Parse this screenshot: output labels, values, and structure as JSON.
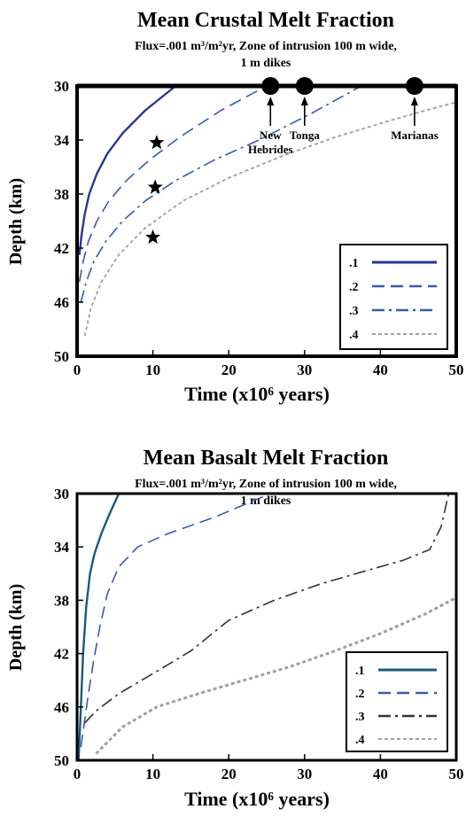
{
  "colors": {
    "s1_top": "#2b3590",
    "s1_bottom": "#1a5a7a",
    "s2": "#3b5aa8",
    "s3_top": "#3b5aa8",
    "s3_bottom": "#333333",
    "s4": "#a0a0a0"
  },
  "chart_data": [
    {
      "type": "line",
      "title": "Mean Crustal Melt Fraction",
      "subtitle_line1": "Flux=.001 m³/m²yr, Zone of intrusion 100 m wide,",
      "subtitle_line2": "1 m dikes",
      "xlabel": "Time (x10⁶ years)",
      "ylabel": "Depth (km)",
      "xlim": [
        0,
        50
      ],
      "ylim": [
        50,
        30
      ],
      "x_ticks": [
        "0",
        "10",
        "20",
        "30",
        "40",
        "50"
      ],
      "y_ticks": [
        "30",
        "34",
        "38",
        "42",
        "46",
        "50"
      ],
      "legend_position": "bottom-right",
      "series": [
        {
          "name": ".1",
          "style": "solid",
          "x": [
            0.3,
            0.6,
            1.0,
            1.6,
            2.6,
            4.0,
            6.0,
            9.0,
            13.0
          ],
          "y": [
            42.5,
            41.0,
            39.5,
            38.0,
            36.5,
            35.0,
            33.5,
            31.8,
            30.0
          ]
        },
        {
          "name": ".2",
          "style": "dashed",
          "x": [
            0.3,
            0.8,
            1.5,
            2.6,
            4.2,
            6.5,
            9.5,
            13.5,
            19.0,
            25.0
          ],
          "y": [
            44.5,
            43.0,
            41.5,
            40.0,
            38.5,
            37.0,
            35.5,
            33.8,
            31.8,
            30.0
          ]
        },
        {
          "name": ".3",
          "style": "dashdot",
          "x": [
            0.5,
            1.2,
            2.2,
            3.8,
            6.0,
            9.0,
            13.0,
            18.0,
            24.0,
            31.0,
            37.5
          ],
          "y": [
            46.0,
            44.5,
            43.0,
            41.5,
            40.0,
            38.5,
            37.0,
            35.5,
            34.0,
            32.0,
            30.0
          ]
        },
        {
          "name": ".4",
          "style": "dotted",
          "x": [
            1.0,
            1.8,
            3.2,
            5.5,
            9.0,
            14.0,
            20.0,
            27.0,
            34.0,
            41.0,
            46.0,
            50.0
          ],
          "y": [
            48.5,
            46.5,
            44.5,
            42.5,
            40.5,
            38.5,
            36.8,
            35.2,
            33.8,
            32.6,
            31.8,
            31.2
          ]
        }
      ],
      "markers": [
        {
          "shape": "star",
          "x": 10.5,
          "y": 34.2
        },
        {
          "shape": "star",
          "x": 10.3,
          "y": 37.5
        },
        {
          "shape": "star",
          "x": 10.0,
          "y": 41.2
        }
      ],
      "annotations": [
        {
          "label_line1": "New",
          "label_line2": "Hebrides",
          "x": 25.5,
          "y": 30
        },
        {
          "label_line1": "Tonga",
          "label_line2": "",
          "x": 30.0,
          "y": 30
        },
        {
          "label_line1": "Marianas",
          "label_line2": "",
          "x": 44.5,
          "y": 30
        }
      ]
    },
    {
      "type": "line",
      "title": "Mean Basalt Melt Fraction",
      "subtitle_line1": "Flux=.001 m³/m²yr, Zone of intrusion 100 m wide,",
      "subtitle_line2": "1 m dikes",
      "xlabel": "Time (x10⁶ years)",
      "ylabel": "Depth (km)",
      "xlim": [
        0,
        50
      ],
      "ylim": [
        50,
        30
      ],
      "x_ticks": [
        "0",
        "10",
        "20",
        "30",
        "40",
        "50"
      ],
      "y_ticks": [
        "30",
        "34",
        "38",
        "42",
        "46",
        "50"
      ],
      "legend_position": "bottom-right",
      "series": [
        {
          "name": ".1",
          "style": "solid",
          "x": [
            0.2,
            0.5,
            0.8,
            1.2,
            1.7,
            2.3,
            3.2,
            4.3,
            5.5
          ],
          "y": [
            50.0,
            46.0,
            42.0,
            38.5,
            36.0,
            34.5,
            33.0,
            31.5,
            30.0
          ]
        },
        {
          "name": ".2",
          "style": "dashed",
          "x": [
            0.5,
            1.0,
            1.5,
            2.2,
            3.0,
            4.0,
            5.5,
            8.0,
            12.0,
            18.0,
            25.5
          ],
          "y": [
            49.0,
            47.0,
            45.0,
            42.5,
            40.0,
            37.5,
            35.5,
            34.0,
            33.0,
            31.8,
            30.0
          ]
        },
        {
          "name": ".3",
          "style": "dashdot",
          "x": [
            1.0,
            2.5,
            5.5,
            10.0,
            15.0,
            20.0,
            26.0,
            32.0,
            38.0,
            43.0,
            46.5,
            48.0,
            49.0
          ],
          "y": [
            47.2,
            46.3,
            45.0,
            43.5,
            41.8,
            39.5,
            38.0,
            36.8,
            35.8,
            35.0,
            34.2,
            32.5,
            30.0
          ]
        },
        {
          "name": ".4",
          "style": "dotted",
          "x": [
            2.5,
            6.0,
            10.5,
            16.0,
            22.0,
            28.0,
            34.0,
            40.0,
            46.0,
            50.0
          ],
          "y": [
            49.5,
            47.5,
            46.0,
            45.0,
            44.0,
            43.0,
            41.8,
            40.5,
            39.0,
            37.8
          ]
        }
      ],
      "markers": [],
      "annotations": []
    }
  ]
}
